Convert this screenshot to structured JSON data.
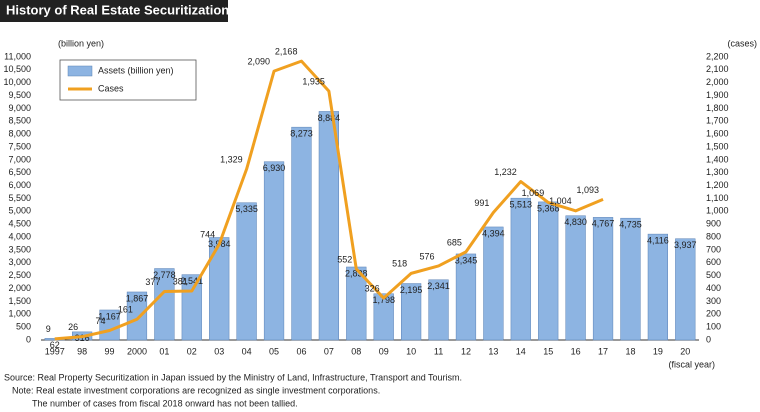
{
  "chart_data": {
    "type": "bar",
    "title": "History of Real Estate Securitization",
    "ylabel": "(billion yen)",
    "y2label": "(cases)",
    "xlabel": "(fiscal year)",
    "categories": [
      "1997",
      "98",
      "99",
      "2000",
      "01",
      "02",
      "03",
      "04",
      "05",
      "06",
      "07",
      "08",
      "09",
      "10",
      "11",
      "12",
      "13",
      "14",
      "15",
      "16",
      "17",
      "18",
      "19",
      "20"
    ],
    "series": [
      {
        "name": "Assets (billion yen)",
        "type": "bar",
        "color": "#8db4e2",
        "values": [
          62,
          316,
          1167,
          1867,
          2778,
          2541,
          3984,
          5335,
          6930,
          8273,
          8884,
          2838,
          1798,
          2195,
          2341,
          3345,
          4394,
          5513,
          5368,
          4830,
          4767,
          4735,
          4116,
          3937
        ],
        "value_labels": [
          "62",
          "316",
          "1,167",
          "1,867",
          "2,778",
          "2,541",
          "3,984",
          "5,335",
          "6,930",
          "8,273",
          "8,884",
          "2,838",
          "1,798",
          "2,195",
          "2,341",
          "3,345",
          "4,394",
          "5,513",
          "5,368",
          "4,830",
          "4,767",
          "4,735",
          "4,116",
          "3,937"
        ]
      },
      {
        "name": "Cases",
        "type": "line",
        "axis": "y2",
        "color": "#f0a020",
        "values": [
          9,
          26,
          74,
          161,
          377,
          381,
          744,
          1329,
          2090,
          2168,
          1935,
          552,
          326,
          518,
          576,
          685,
          991,
          1232,
          1069,
          1004,
          1093,
          null,
          null,
          null
        ],
        "value_labels": [
          "9",
          "26",
          "74",
          "161",
          "377",
          "381",
          "744",
          "1,329",
          "2,090",
          "2,168",
          "1,935",
          "552",
          "326",
          "518",
          "576",
          "685",
          "991",
          "1,232",
          "1,069",
          "1,004",
          "1,093",
          null,
          null,
          null
        ]
      }
    ],
    "ylim": [
      0,
      11000
    ],
    "yticks": [
      0,
      500,
      {
        "value": 1000,
        "label": "1,000"
      },
      {
        "value": 1500,
        "label": "1,500"
      },
      {
        "value": 2000,
        "label": "2,000"
      },
      {
        "value": 2500,
        "label": "2,500"
      },
      {
        "value": 3000,
        "label": "3,000"
      },
      {
        "value": 3500,
        "label": "3,500"
      },
      {
        "value": 4000,
        "label": "4,000"
      },
      {
        "value": 4500,
        "label": "4,500"
      },
      {
        "value": 5000,
        "label": "5,000"
      },
      {
        "value": 5500,
        "label": "5,500"
      },
      {
        "value": 6000,
        "label": "6,000"
      },
      {
        "value": 6500,
        "label": "6,500"
      },
      {
        "value": 7000,
        "label": "7,000"
      },
      {
        "value": 7500,
        "label": "7,500"
      },
      {
        "value": 8000,
        "label": "8,000"
      },
      {
        "value": 8500,
        "label": "8,500"
      },
      {
        "value": 9000,
        "label": "9,000"
      },
      {
        "value": 9500,
        "label": "9,500"
      },
      {
        "value": 10000,
        "label": "10,000"
      },
      {
        "value": 10500,
        "label": "10,500"
      },
      {
        "value": 11000,
        "label": "11,000"
      }
    ],
    "y2lim": [
      0,
      2200
    ],
    "y2ticks": [
      0,
      100,
      200,
      300,
      400,
      500,
      600,
      700,
      800,
      900,
      {
        "value": 1000,
        "label": "1,000"
      },
      {
        "value": 1100,
        "label": "1,100"
      },
      {
        "value": 1200,
        "label": "1,200"
      },
      {
        "value": 1300,
        "label": "1,300"
      },
      {
        "value": 1400,
        "label": "1,400"
      },
      {
        "value": 1500,
        "label": "1,500"
      },
      {
        "value": 1600,
        "label": "1,600"
      },
      {
        "value": 1700,
        "label": "1,700"
      },
      {
        "value": 1800,
        "label": "1,800"
      },
      {
        "value": 1900,
        "label": "1,900"
      },
      {
        "value": 2000,
        "label": "2,000"
      },
      {
        "value": 2100,
        "label": "2,100"
      },
      {
        "value": 2200,
        "label": "2,200"
      }
    ],
    "grid": false,
    "source": "Source: Real Property Securitization in Japan issued by the Ministry of Land, Infrastructure, Transport and Tourism.",
    "notes": [
      "Note: Real estate investment corporations are recognized as single investment corporations.",
      "The number of cases from fiscal 2018 onward has not been tallied."
    ]
  }
}
